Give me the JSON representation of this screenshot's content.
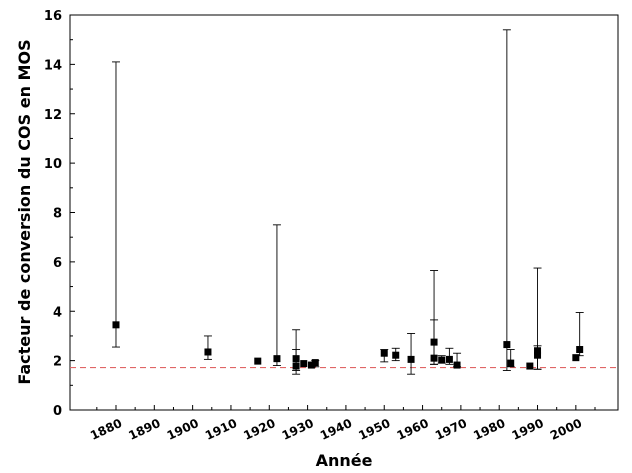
{
  "chart_data": {
    "type": "scatter",
    "title": "",
    "xlabel": "Année",
    "ylabel": "Facteur de conversion du COS en MOS",
    "xlim": [
      1868,
      2011
    ],
    "ylim": [
      0,
      16
    ],
    "xticks": [
      1880,
      1890,
      1900,
      1910,
      1920,
      1930,
      1940,
      1950,
      1960,
      1970,
      1980,
      1990,
      2000
    ],
    "yticks": [
      0,
      2,
      4,
      6,
      8,
      10,
      12,
      14,
      16
    ],
    "grid": false,
    "reference_line": {
      "y": 1.72,
      "style": "dashed",
      "color": "#e06666"
    },
    "marker_color": "#000000",
    "points": [
      {
        "x": 1880,
        "y": 3.45,
        "low": 2.55,
        "high": 14.1
      },
      {
        "x": 1904,
        "y": 2.35,
        "low": 2.05,
        "high": 3.0
      },
      {
        "x": 1917,
        "y": 1.98
      },
      {
        "x": 1922,
        "y": 2.08,
        "low": 1.8,
        "high": 7.5
      },
      {
        "x": 1927,
        "y": 2.08,
        "low": 1.45,
        "high": 3.25
      },
      {
        "x": 1927,
        "y": 1.78,
        "low": 1.6,
        "high": 2.45
      },
      {
        "x": 1929,
        "y": 1.88
      },
      {
        "x": 1931,
        "y": 1.82
      },
      {
        "x": 1932,
        "y": 1.92,
        "low": 1.75,
        "high": 2.0
      },
      {
        "x": 1950,
        "y": 2.3,
        "low": 1.95,
        "high": 2.45
      },
      {
        "x": 1953,
        "y": 2.22,
        "low": 2.0,
        "high": 2.5
      },
      {
        "x": 1957,
        "y": 2.05,
        "low": 1.45,
        "high": 3.1
      },
      {
        "x": 1963,
        "y": 2.75,
        "low": 1.85,
        "high": 5.65
      },
      {
        "x": 1963,
        "y": 2.1,
        "low": 1.85,
        "high": 3.65
      },
      {
        "x": 1965,
        "y": 2.02,
        "low": 1.9,
        "high": 2.2
      },
      {
        "x": 1967,
        "y": 2.05,
        "low": 1.85,
        "high": 2.5
      },
      {
        "x": 1969,
        "y": 1.82,
        "low": 1.75,
        "high": 2.3
      },
      {
        "x": 1982,
        "y": 2.65,
        "low": 1.6,
        "high": 15.4
      },
      {
        "x": 1983,
        "y": 1.9,
        "low": 1.75,
        "high": 2.45
      },
      {
        "x": 1988,
        "y": 1.78
      },
      {
        "x": 1990,
        "y": 2.4,
        "low": 1.65,
        "high": 5.75
      },
      {
        "x": 1990,
        "y": 2.22,
        "low": 1.65,
        "high": 2.6
      },
      {
        "x": 2000,
        "y": 2.12
      },
      {
        "x": 2001,
        "y": 2.45,
        "low": 2.2,
        "high": 3.95
      }
    ]
  }
}
